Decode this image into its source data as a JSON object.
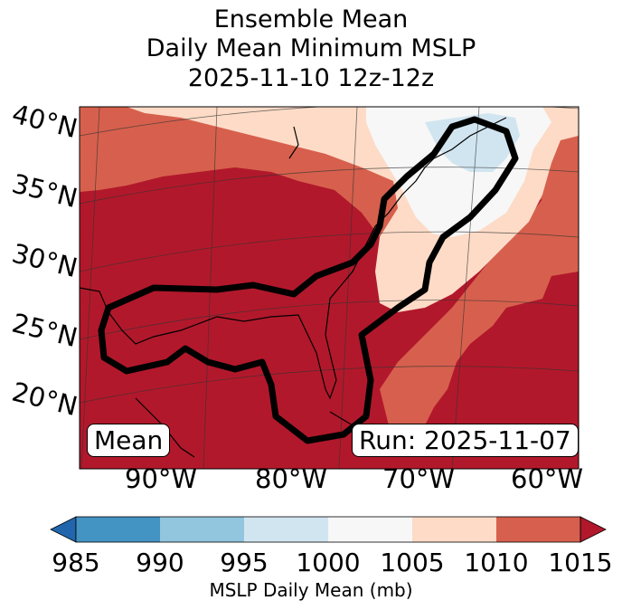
{
  "title": {
    "line1": "Ensemble Mean",
    "line2": "Daily Mean Minimum MSLP",
    "line3": "2025-11-10 12z-12z"
  },
  "map": {
    "lat_labels": [
      "40°N",
      "35°N",
      "30°N",
      "25°N",
      "20°N"
    ],
    "lon_labels": [
      "90°W",
      "80°W",
      "70°W",
      "60°W"
    ],
    "mean_box": "Mean",
    "run_box": "Run: 2025-11-07",
    "colors": {
      "band_985_990": "#4393c3",
      "band_990_995": "#92c5de",
      "band_995_1000": "#d1e5f0",
      "band_1000_1005": "#f7f7f7",
      "band_1005_1010": "#fddbc7",
      "band_1010_1015": "#d6604d",
      "band_1015_plus": "#b2182b",
      "under_985": "#2166ac"
    }
  },
  "colorbar": {
    "ticks": [
      "985",
      "990",
      "995",
      "1000",
      "1005",
      "1010",
      "1015"
    ],
    "label": "MSLP Daily Mean (mb)"
  }
}
